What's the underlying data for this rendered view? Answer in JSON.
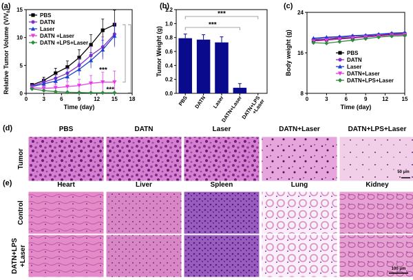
{
  "panel_labels": {
    "a": "(a)",
    "b": "(b)",
    "c": "(c)",
    "d": "(d)",
    "e": "(e)"
  },
  "chart_data": [
    {
      "type": "line",
      "panel": "(a)",
      "xlabel": "Time (day)",
      "ylabel": "Relative Tumor Volume (V/V",
      "ylabel_sub": "0",
      "ylabel_close": ")",
      "xlim": [
        0,
        18
      ],
      "ylim": [
        0,
        15
      ],
      "xticks": [
        "0",
        "3",
        "6",
        "9",
        "12",
        "15",
        "18"
      ],
      "yticks": [
        "0",
        "5",
        "10",
        "15"
      ],
      "x": [
        1,
        3,
        5,
        7,
        9,
        11,
        13,
        15
      ],
      "series": [
        {
          "name": "PBS",
          "color": "#000000",
          "marker": "square",
          "values": [
            1.5,
            2.3,
            3.6,
            4.7,
            6.4,
            8.7,
            11.3,
            12.3
          ],
          "errors": [
            0.3,
            0.6,
            0.9,
            1.1,
            1.4,
            1.8,
            2.0,
            2.6
          ]
        },
        {
          "name": "DATN",
          "color": "#8b2fc9",
          "marker": "circle",
          "values": [
            1.3,
            2.0,
            2.7,
            3.6,
            5.0,
            6.8,
            8.3,
            10.6
          ],
          "errors": [
            0.3,
            0.5,
            0.7,
            0.9,
            1.2,
            1.6,
            1.8,
            2.0
          ]
        },
        {
          "name": "Laser",
          "color": "#1f3fcf",
          "marker": "triangle",
          "values": [
            1.2,
            1.7,
            2.2,
            3.0,
            4.3,
            5.9,
            7.8,
            10.3
          ],
          "errors": [
            0.3,
            0.5,
            0.6,
            0.8,
            1.1,
            1.4,
            1.7,
            2.0
          ]
        },
        {
          "name": "DATN +Laser",
          "color": "#e83be8",
          "marker": "triangle-down",
          "values": [
            1.0,
            0.9,
            1.0,
            1.2,
            1.4,
            1.8,
            2.0,
            2.0
          ],
          "errors": [
            0.2,
            0.4,
            0.6,
            0.9,
            1.1,
            1.4,
            1.8,
            2.0
          ]
        },
        {
          "name": "DATN +LPS+Laser",
          "color": "#2e8b3d",
          "marker": "diamond",
          "values": [
            0.8,
            0.5,
            0.3,
            0.2,
            0.15,
            0.1,
            0.1,
            0.1
          ],
          "errors": [
            0.15,
            0.15,
            0.1,
            0.1,
            0.05,
            0.05,
            0.05,
            0.05
          ]
        }
      ],
      "annotations": [
        "***",
        "***"
      ]
    },
    {
      "type": "bar",
      "panel": "(b)",
      "ylabel": "Tumor Weight (g)",
      "ylim": [
        0,
        1.2
      ],
      "yticks": [
        "0.0",
        "0.2",
        "0.4",
        "0.6",
        "0.8",
        "1.0",
        "1.2"
      ],
      "categories": [
        "PBS",
        "DATN",
        "Laser",
        "DATN+Laser",
        "DATN+LPS +Laser"
      ],
      "values": [
        0.79,
        0.77,
        0.73,
        0.08,
        0.0
      ],
      "errors": [
        0.06,
        0.07,
        0.08,
        0.06,
        0.0
      ],
      "bar_color": "#0a0a8c",
      "annotations": [
        "***",
        "***"
      ]
    },
    {
      "type": "line",
      "panel": "(c)",
      "xlabel": "Time (day)",
      "ylabel": "Body weight (g)",
      "xlim": [
        0,
        15
      ],
      "ylim": [
        8,
        24
      ],
      "xticks": [
        "0",
        "3",
        "6",
        "9",
        "12",
        "15"
      ],
      "yticks": [
        "8",
        "16",
        "24"
      ],
      "x": [
        1,
        3,
        5,
        7,
        9,
        11,
        13,
        15
      ],
      "series": [
        {
          "name": "PBS",
          "color": "#000000",
          "marker": "square",
          "values": [
            18.5,
            18.6,
            18.9,
            19.0,
            19.2,
            19.4,
            19.6,
            19.7
          ]
        },
        {
          "name": "DATN",
          "color": "#8b2fc9",
          "marker": "circle",
          "values": [
            18.7,
            18.9,
            19.1,
            19.3,
            19.4,
            19.6,
            19.8,
            19.9
          ]
        },
        {
          "name": "Laser",
          "color": "#1f3fcf",
          "marker": "triangle",
          "values": [
            18.9,
            19.1,
            19.2,
            19.4,
            19.5,
            19.7,
            19.9,
            20.0
          ]
        },
        {
          "name": "DATN+Laser",
          "color": "#e83be8",
          "marker": "triangle-down",
          "values": [
            18.3,
            18.5,
            18.7,
            18.9,
            19.1,
            19.3,
            19.5,
            19.6
          ]
        },
        {
          "name": "DATN+LPS+Laser",
          "color": "#2e8b3d",
          "marker": "diamond",
          "values": [
            18.0,
            17.9,
            18.2,
            18.5,
            18.8,
            19.1,
            19.3,
            19.4
          ]
        }
      ]
    }
  ],
  "histology": {
    "tumor_row_label": "Tumor",
    "tumor_columns": [
      "PBS",
      "DATN",
      "Laser",
      "DATN+Laser",
      "DATN+LPS+Laser"
    ],
    "scale_bar_d": "50 μm",
    "organ_columns": [
      "Heart",
      "Liver",
      "Spleen",
      "Lung",
      "Kidney"
    ],
    "organ_rows": [
      "Control",
      "DATN+LPS\n+Laser"
    ],
    "scale_bar_e": "100 μm"
  }
}
